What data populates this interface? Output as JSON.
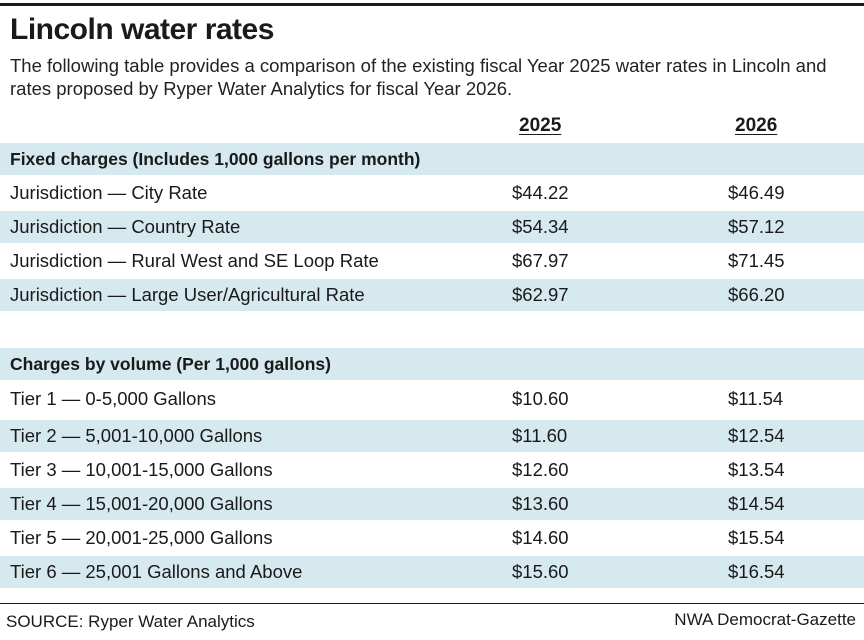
{
  "title": "Lincoln water rates",
  "subtitle": "The following table provides a comparison of the existing fiscal Year 2025 water rates in Lincoln and rates proposed by Ryper Water Analytics for fiscal Year 2026.",
  "columns": [
    "2025",
    "2026"
  ],
  "fixed": {
    "heading": "Fixed charges (Includes 1,000 gallons per month)",
    "rows": [
      {
        "label": "Jurisdiction — City Rate",
        "v2025": "$44.22",
        "v2026": "$46.49"
      },
      {
        "label": "Jurisdiction — Country Rate",
        "v2025": "$54.34",
        "v2026": "$57.12"
      },
      {
        "label": "Jurisdiction — Rural West and SE Loop Rate",
        "v2025": "$67.97",
        "v2026": "$71.45"
      },
      {
        "label": "Jurisdiction — Large User/Agricultural Rate",
        "v2025": "$62.97",
        "v2026": "$66.20"
      }
    ]
  },
  "volume": {
    "heading": "Charges by volume (Per 1,000 gallons)",
    "rows": [
      {
        "label": "Tier 1 — 0-5,000 Gallons",
        "v2025": "$10.60",
        "v2026": "$11.54"
      },
      {
        "label": "Tier 2 — 5,001-10,000 Gallons",
        "v2025": "$11.60",
        "v2026": "$12.54"
      },
      {
        "label": "Tier 3 — 10,001-15,000 Gallons",
        "v2025": "$12.60",
        "v2026": "$13.54"
      },
      {
        "label": "Tier 4 — 15,001-20,000 Gallons",
        "v2025": "$13.60",
        "v2026": "$14.54"
      },
      {
        "label": "Tier 5 — 20,001-25,000 Gallons",
        "v2025": "$14.60",
        "v2026": "$15.54"
      },
      {
        "label": "Tier 6 — 25,001 Gallons and Above",
        "v2025": "$15.60",
        "v2026": "$16.54"
      }
    ]
  },
  "source": "SOURCE: Ryper Water Analytics",
  "credit": "NWA Democrat-Gazette",
  "colors": {
    "band": "#d6e9ef",
    "text": "#1a1a1a"
  }
}
